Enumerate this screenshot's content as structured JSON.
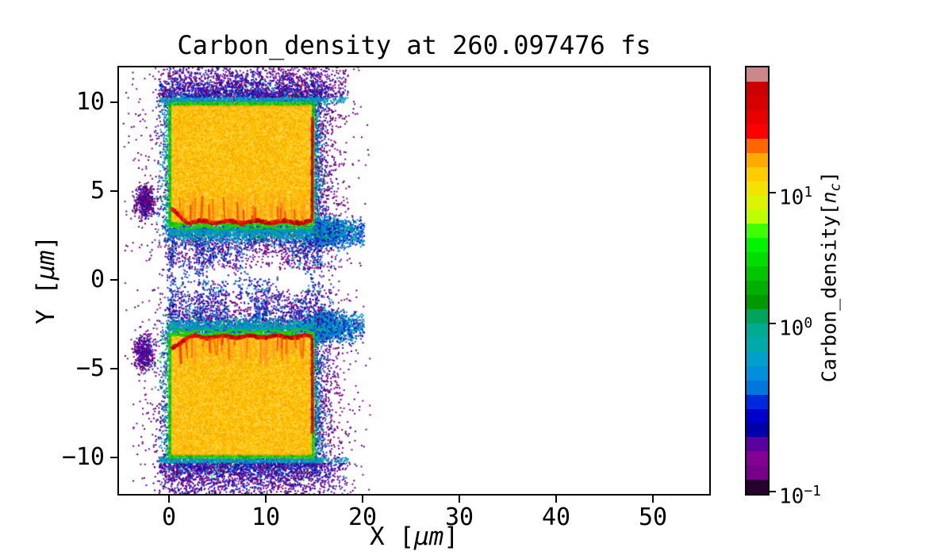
{
  "chart_data": {
    "type": "heatmap",
    "title": "Carbon_density at 260.097476 fs",
    "xlabel": {
      "pre": "X [",
      "unit": "μm",
      "post": "]"
    },
    "ylabel": {
      "pre": "Y [",
      "unit": "μm",
      "post": "]"
    },
    "xlim": [
      -5.2,
      55.8
    ],
    "ylim": [
      -12,
      12
    ],
    "xticks": [
      "0",
      "10",
      "20",
      "30",
      "40",
      "50"
    ],
    "xtick_values": [
      0,
      10,
      20,
      30,
      40,
      50
    ],
    "yticks": [
      "10",
      "5",
      "0",
      "−5",
      "−10"
    ],
    "ytick_values": [
      10,
      5,
      0,
      -5,
      -10
    ],
    "grid": false,
    "colorbar": {
      "label": {
        "pre": "Carbon_density[",
        "var": "n",
        "sub": "c",
        "post": "]"
      },
      "scale": "log",
      "n_segments": 30,
      "colormap_name": "nipy_spectral (discretized)",
      "ticks": [
        {
          "base": "10",
          "exp": "1",
          "value": 10,
          "frac": 0.294
        },
        {
          "base": "10",
          "exp": "0",
          "value": 1,
          "frac": 0.6
        },
        {
          "base": "10",
          "exp": "−1",
          "value": 0.1,
          "frac": 0.994
        }
      ],
      "colormap_stops": [
        [
          0.0,
          0,
          0,
          0
        ],
        [
          0.05,
          119,
          0,
          136
        ],
        [
          0.1,
          136,
          0,
          153
        ],
        [
          0.15,
          0,
          0,
          170
        ],
        [
          0.2,
          0,
          0,
          221
        ],
        [
          0.25,
          0,
          119,
          221
        ],
        [
          0.3,
          0,
          153,
          221
        ],
        [
          0.35,
          0,
          170,
          170
        ],
        [
          0.4,
          0,
          170,
          136
        ],
        [
          0.45,
          0,
          153,
          0
        ],
        [
          0.5,
          0,
          187,
          0
        ],
        [
          0.55,
          0,
          221,
          0
        ],
        [
          0.6,
          0,
          255,
          0
        ],
        [
          0.65,
          187,
          255,
          0
        ],
        [
          0.7,
          238,
          238,
          0
        ],
        [
          0.75,
          255,
          204,
          0
        ],
        [
          0.8,
          255,
          153,
          0
        ],
        [
          0.85,
          255,
          0,
          0
        ],
        [
          0.9,
          221,
          0,
          0
        ],
        [
          0.95,
          204,
          0,
          0
        ],
        [
          1.0,
          204,
          204,
          204
        ]
      ]
    },
    "features": {
      "description": "PIC simulation carbon ion density: two dense slab targets (x 0–15 μm; y 3.1–10 μm and −10 to −3 μm), yellow ~10 nc interiors, red ~50 nc compression fronts facing the central gap and along x≈15, green ~2 nc borders, teal/blue ~0.5–1 nc fringe and a blue/purple ~0.1–0.3 nc scattered halo with a thinned neck of expanding plasma between the slabs.",
      "slabs": [
        {
          "x": [
            0,
            15
          ],
          "y": [
            3.1,
            10
          ],
          "front": "bottom"
        },
        {
          "x": [
            0,
            15
          ],
          "y": [
            -10,
            -3.0
          ],
          "front": "top"
        }
      ],
      "neck_voids": [
        [
          9.9,
          1.1,
          2.2,
          1.05
        ],
        [
          12.8,
          -0.2,
          1.6,
          0.85
        ],
        [
          5.2,
          0.5,
          1.1,
          0.6
        ],
        [
          7.6,
          -1.7,
          1.3,
          0.65
        ]
      ],
      "left_clusters": [
        [
          -2.5,
          4.4,
          1.0,
          0.85,
          520
        ],
        [
          -2.6,
          -4.1,
          1.0,
          0.9,
          520
        ]
      ],
      "palettes": {
        "interior": "#fcc708",
        "interior_speckle": [
          "#ffb400",
          "#ffd84e",
          "#f7a600",
          "#ffcf1e",
          "#ffc300"
        ],
        "edge_green": "#1ecc00",
        "green": [
          "#00d200",
          "#36e600",
          "#00aa00"
        ],
        "teal": [
          "#00a8b4",
          "#0096d2",
          "#00aa8a",
          "#0080d8"
        ],
        "blue": [
          "#0f1ed2",
          "#0000b8",
          "#2a12cc",
          "#0040d8"
        ],
        "purple": [
          "#45005a",
          "#7b008c",
          "#57006e",
          "#8c009e"
        ],
        "red": "#dc0000",
        "red_blobs": [
          "#c40000",
          "#e60000",
          "#a80000",
          "#ee1c00"
        ],
        "spike": [
          "#e83000",
          "#ff5500"
        ],
        "wisp": "#ff8c28",
        "stray_red": "#990000"
      }
    }
  }
}
